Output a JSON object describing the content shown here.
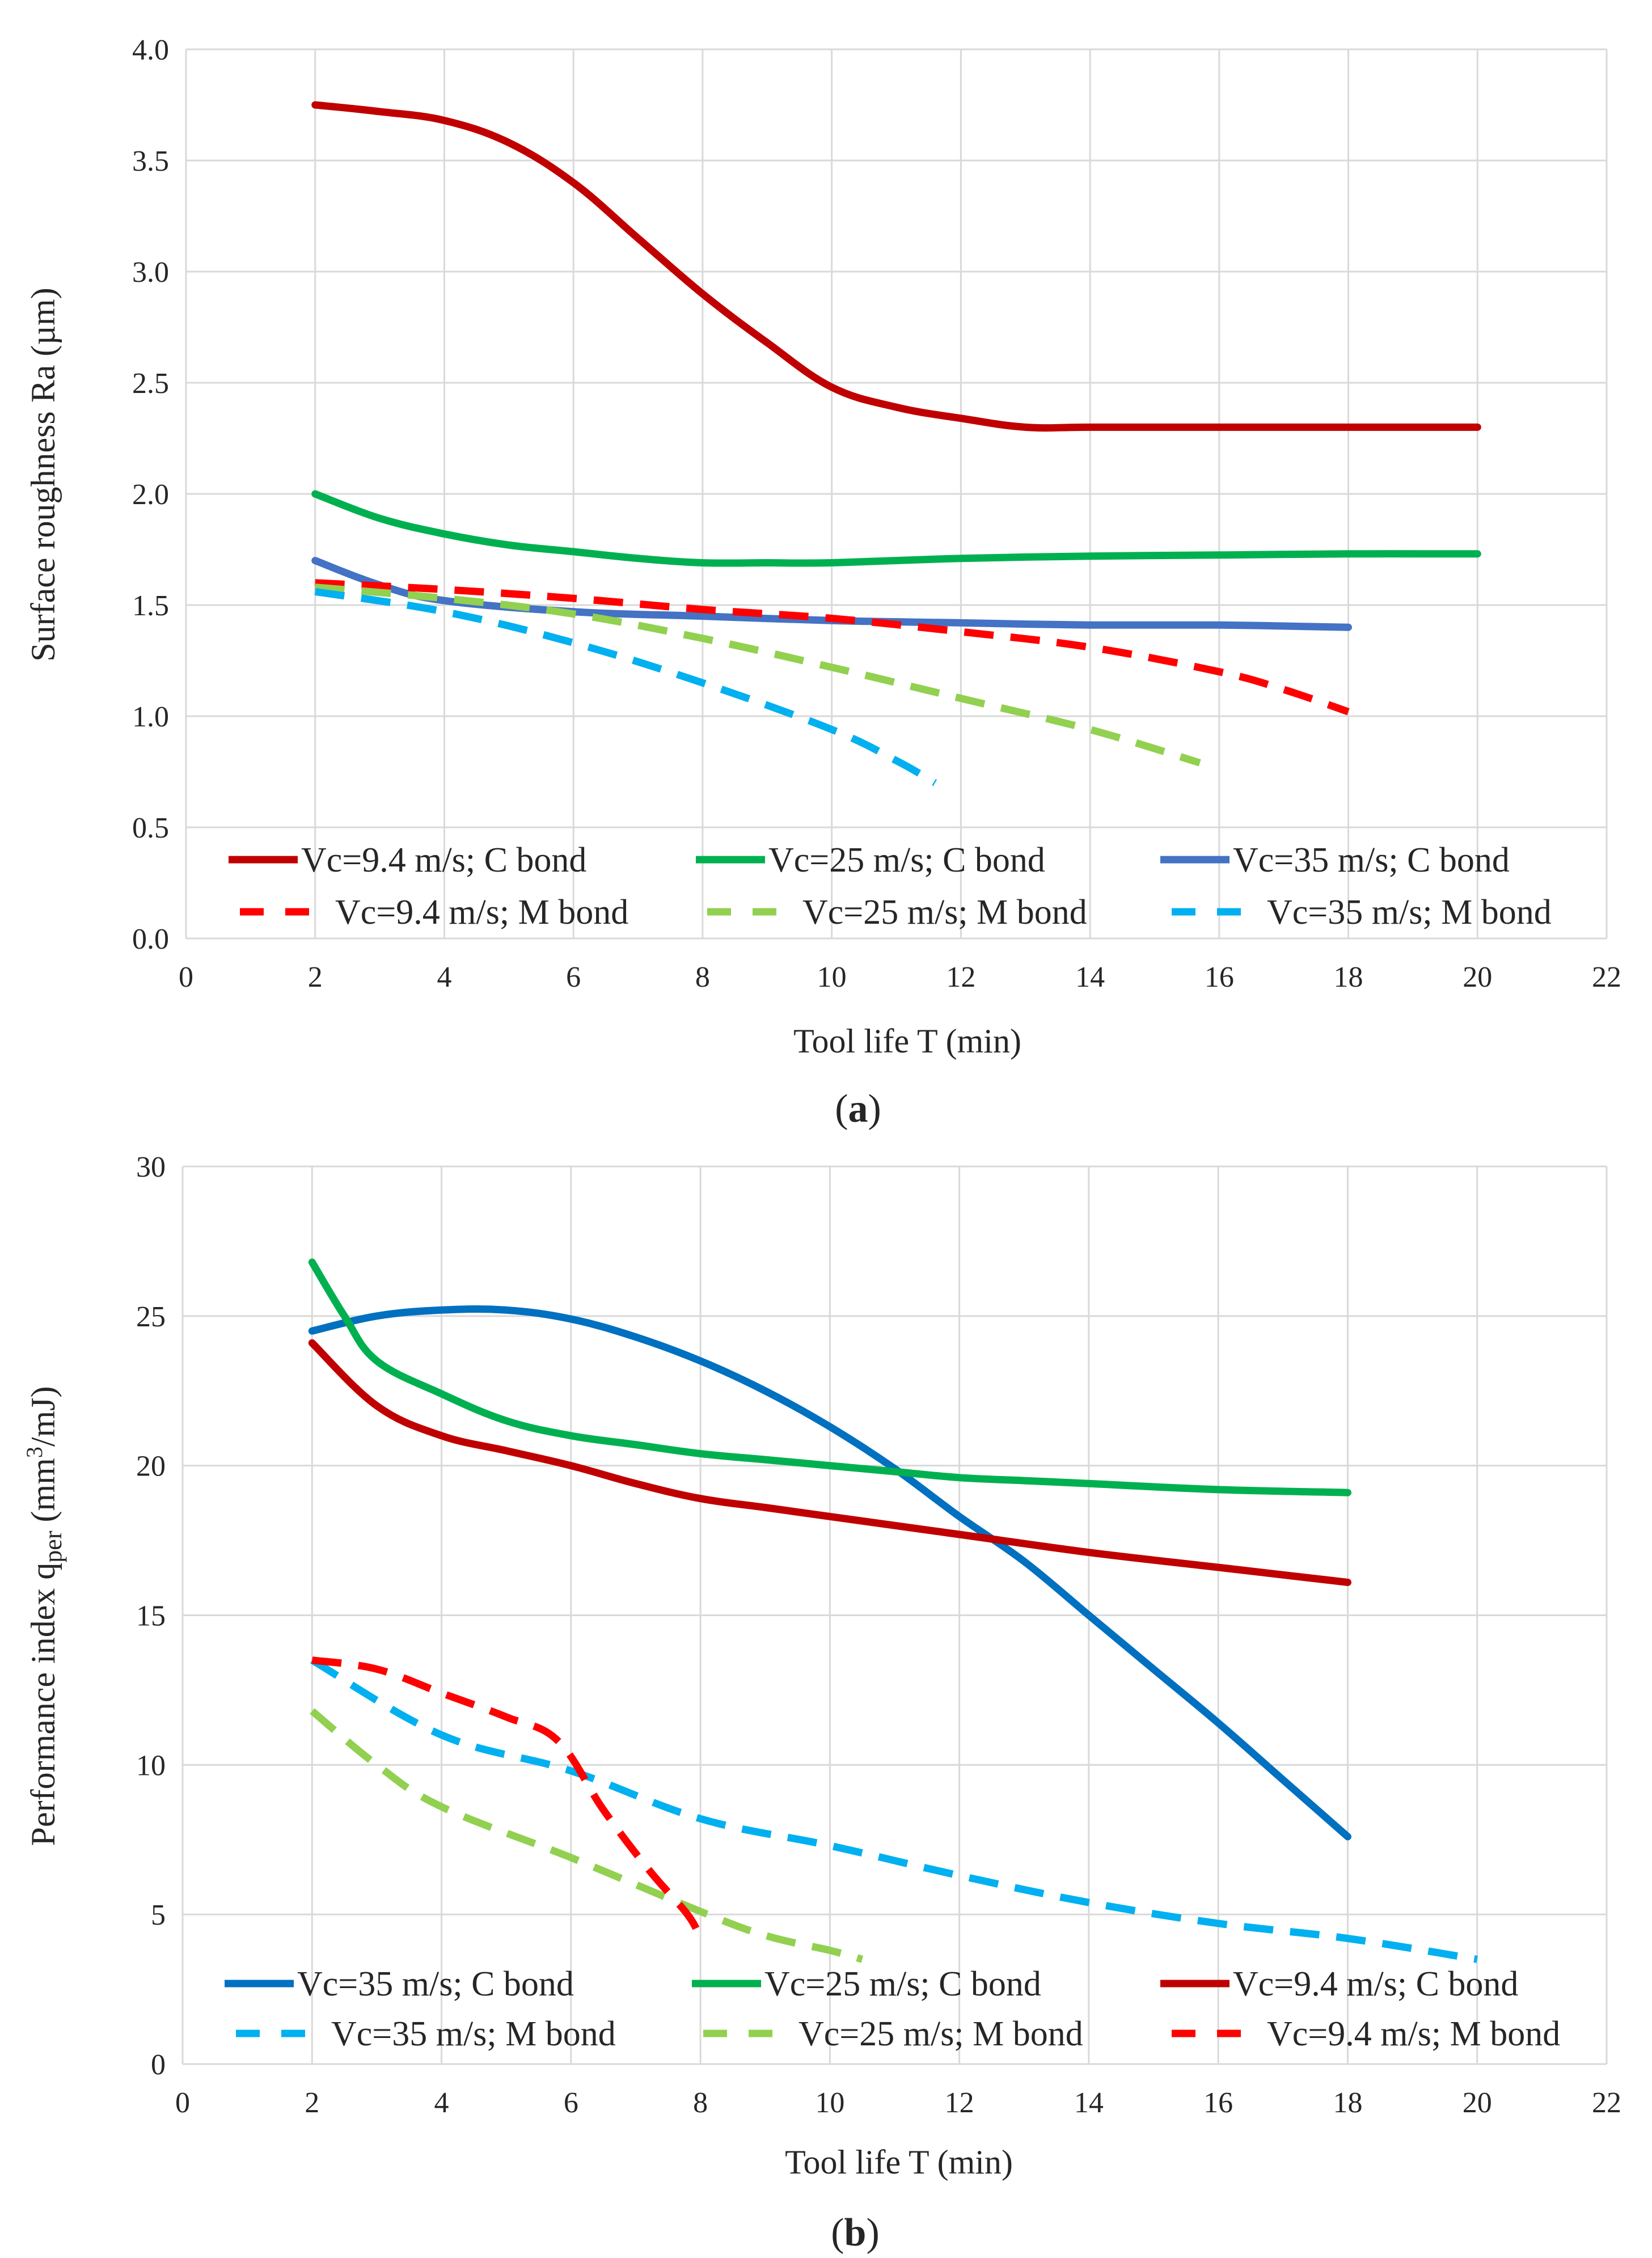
{
  "captions": {
    "a_open": "(",
    "a_letter": "a",
    "a_close": ")",
    "b_open": "(",
    "b_letter": "b",
    "b_close": ")"
  },
  "chart_data": [
    {
      "id": "a",
      "type": "line",
      "title": "",
      "xlabel": "Tool life T (min)",
      "ylabel": "Surface roughness Ra (µm)",
      "xlim": [
        0,
        22
      ],
      "ylim": [
        0,
        4
      ],
      "xticks": [
        0,
        2,
        4,
        6,
        8,
        10,
        12,
        14,
        16,
        18,
        20,
        22
      ],
      "yticks": [
        "0.0",
        "0.5",
        "1.0",
        "1.5",
        "2.0",
        "2.5",
        "3.0",
        "3.5",
        "4.0"
      ],
      "grid": true,
      "legend_position": "bottom-inside",
      "series": [
        {
          "name": "Vc=9.4 m/s; C bond",
          "color": "#C00000",
          "style": "solid",
          "points": [
            [
              2,
              3.75
            ],
            [
              3,
              3.72
            ],
            [
              4,
              3.68
            ],
            [
              5,
              3.58
            ],
            [
              6,
              3.4
            ],
            [
              7,
              3.15
            ],
            [
              8,
              2.9
            ],
            [
              9,
              2.68
            ],
            [
              10,
              2.48
            ],
            [
              11,
              2.39
            ],
            [
              12,
              2.34
            ],
            [
              13,
              2.3
            ],
            [
              14,
              2.3
            ],
            [
              16,
              2.3
            ],
            [
              18,
              2.3
            ],
            [
              20,
              2.3
            ]
          ]
        },
        {
          "name": "Vc=25 m/s; C bond",
          "color": "#00B050",
          "style": "solid",
          "points": [
            [
              2,
              2.0
            ],
            [
              3,
              1.89
            ],
            [
              4,
              1.82
            ],
            [
              5,
              1.77
            ],
            [
              6,
              1.74
            ],
            [
              7,
              1.71
            ],
            [
              8,
              1.69
            ],
            [
              9,
              1.69
            ],
            [
              10,
              1.69
            ],
            [
              12,
              1.71
            ],
            [
              14,
              1.72
            ],
            [
              16,
              1.725
            ],
            [
              18,
              1.73
            ],
            [
              20,
              1.73
            ]
          ]
        },
        {
          "name": "Vc=35 m/s; C bond",
          "color": "#4472C4",
          "style": "solid",
          "points": [
            [
              2,
              1.7
            ],
            [
              3,
              1.59
            ],
            [
              4,
              1.52
            ],
            [
              6,
              1.47
            ],
            [
              8,
              1.45
            ],
            [
              10,
              1.43
            ],
            [
              12,
              1.42
            ],
            [
              14,
              1.41
            ],
            [
              16,
              1.41
            ],
            [
              18,
              1.4
            ]
          ]
        },
        {
          "name": "Vc=9.4 m/s; M bond",
          "color": "#FF0000",
          "style": "dashed",
          "points": [
            [
              2,
              1.6
            ],
            [
              4,
              1.57
            ],
            [
              6,
              1.53
            ],
            [
              8,
              1.48
            ],
            [
              10,
              1.44
            ],
            [
              12,
              1.38
            ],
            [
              14,
              1.31
            ],
            [
              16,
              1.2
            ],
            [
              17,
              1.12
            ],
            [
              18,
              1.02
            ]
          ]
        },
        {
          "name": "Vc=25 m/s; M bond",
          "color": "#92D050",
          "style": "dashed",
          "points": [
            [
              2,
              1.58
            ],
            [
              4,
              1.53
            ],
            [
              6,
              1.46
            ],
            [
              8,
              1.35
            ],
            [
              10,
              1.22
            ],
            [
              12,
              1.08
            ],
            [
              14,
              0.94
            ],
            [
              15.7,
              0.79
            ]
          ]
        },
        {
          "name": "Vc=35 m/s; M bond",
          "color": "#00B0F0",
          "style": "dashed",
          "points": [
            [
              2,
              1.56
            ],
            [
              4,
              1.47
            ],
            [
              6,
              1.33
            ],
            [
              8,
              1.15
            ],
            [
              10,
              0.94
            ],
            [
              11,
              0.8
            ],
            [
              11.6,
              0.7
            ]
          ]
        }
      ]
    },
    {
      "id": "b",
      "type": "line",
      "title": "",
      "xlabel": "Tool life T (min)",
      "ylabel_main": "Performance index q",
      "ylabel_sub": "per",
      "ylabel_unit_a": " (mm",
      "ylabel_sup": "3",
      "ylabel_unit_b": "/mJ)",
      "xlim": [
        0,
        22
      ],
      "ylim": [
        0,
        30
      ],
      "xticks": [
        0,
        2,
        4,
        6,
        8,
        10,
        12,
        14,
        16,
        18,
        20,
        22
      ],
      "yticks": [
        "0",
        "5",
        "10",
        "15",
        "20",
        "25",
        "30"
      ],
      "grid": true,
      "legend_position": "bottom-inside",
      "series": [
        {
          "name": "Vc=35 m/s; C bond",
          "color": "#0070C0",
          "style": "solid",
          "points": [
            [
              2,
              24.5
            ],
            [
              3,
              25.0
            ],
            [
              4,
              25.2
            ],
            [
              5,
              25.2
            ],
            [
              6,
              24.9
            ],
            [
              7,
              24.3
            ],
            [
              8,
              23.5
            ],
            [
              9,
              22.5
            ],
            [
              10,
              21.3
            ],
            [
              11,
              19.9
            ],
            [
              12,
              18.3
            ],
            [
              13,
              16.8
            ],
            [
              14,
              15.0
            ],
            [
              15,
              13.2
            ],
            [
              16,
              11.4
            ],
            [
              17,
              9.5
            ],
            [
              18,
              7.6
            ]
          ]
        },
        {
          "name": "Vc=25 m/s; C bond",
          "color": "#00B050",
          "style": "solid",
          "points": [
            [
              2,
              26.8
            ],
            [
              2.5,
              25.0
            ],
            [
              3,
              23.5
            ],
            [
              4,
              22.4
            ],
            [
              5,
              21.5
            ],
            [
              6,
              21.0
            ],
            [
              7,
              20.7
            ],
            [
              8,
              20.4
            ],
            [
              9,
              20.2
            ],
            [
              10,
              20.0
            ],
            [
              11,
              19.8
            ],
            [
              12,
              19.6
            ],
            [
              13,
              19.5
            ],
            [
              14,
              19.4
            ],
            [
              16,
              19.2
            ],
            [
              18,
              19.1
            ]
          ]
        },
        {
          "name": "Vc=9.4 m/s; C bond",
          "color": "#C00000",
          "style": "solid",
          "points": [
            [
              2,
              24.1
            ],
            [
              3,
              22.0
            ],
            [
              4,
              21.0
            ],
            [
              5,
              20.5
            ],
            [
              6,
              20.0
            ],
            [
              7,
              19.4
            ],
            [
              8,
              18.9
            ],
            [
              9,
              18.6
            ],
            [
              10,
              18.3
            ],
            [
              12,
              17.7
            ],
            [
              14,
              17.1
            ],
            [
              16,
              16.6
            ],
            [
              18,
              16.1
            ]
          ]
        },
        {
          "name": "Vc=35 m/s; M bond",
          "color": "#00B0F0",
          "style": "dashed",
          "points": [
            [
              2,
              13.5
            ],
            [
              4,
              11.0
            ],
            [
              6,
              9.8
            ],
            [
              8,
              8.2
            ],
            [
              10,
              7.3
            ],
            [
              12,
              6.3
            ],
            [
              14,
              5.4
            ],
            [
              16,
              4.7
            ],
            [
              18,
              4.2
            ],
            [
              20,
              3.5
            ]
          ]
        },
        {
          "name": "Vc=25 m/s; M bond",
          "color": "#92D050",
          "style": "dashed",
          "points": [
            [
              2,
              11.8
            ],
            [
              3,
              10.0
            ],
            [
              4,
              8.6
            ],
            [
              6,
              6.9
            ],
            [
              8,
              5.1
            ],
            [
              9,
              4.3
            ],
            [
              10,
              3.8
            ],
            [
              10.5,
              3.5
            ]
          ]
        },
        {
          "name": "Vc=9.4 m/s; M bond",
          "color": "#FF0000",
          "style": "dashed",
          "points": [
            [
              2,
              13.5
            ],
            [
              3,
              13.2
            ],
            [
              4,
              12.4
            ],
            [
              5,
              11.6
            ],
            [
              5.8,
              10.8
            ],
            [
              6.5,
              8.5
            ],
            [
              7.2,
              6.5
            ],
            [
              7.8,
              5.0
            ],
            [
              8,
              4.2
            ]
          ]
        }
      ]
    }
  ]
}
